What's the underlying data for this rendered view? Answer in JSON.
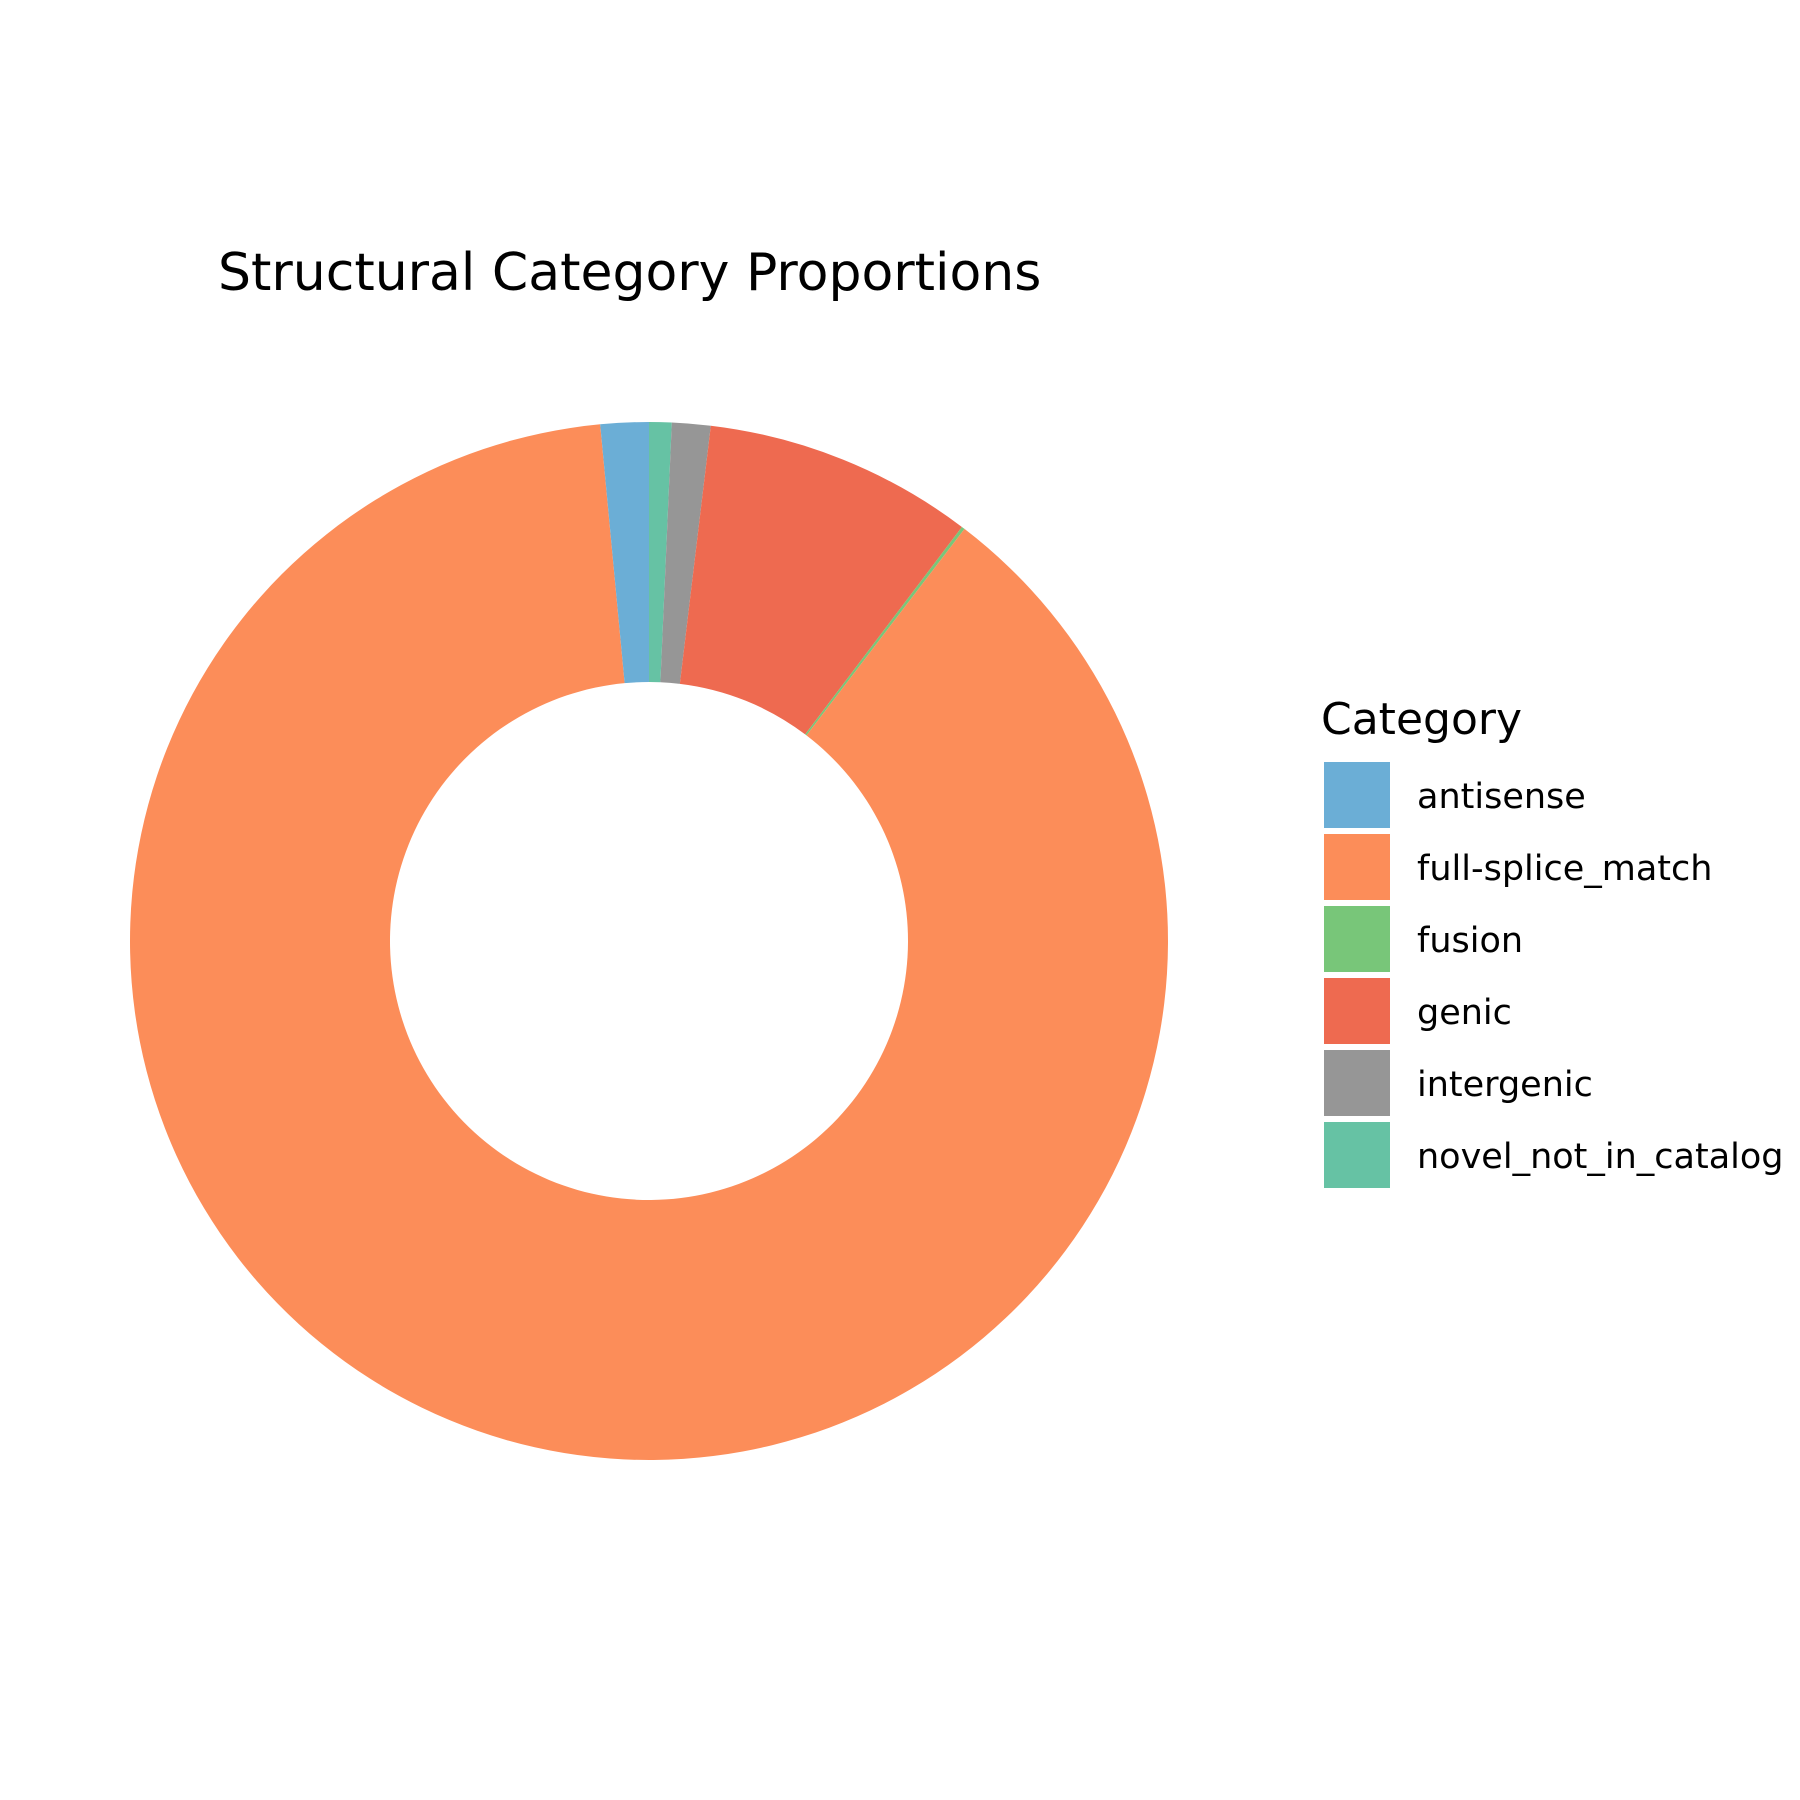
{
  "chart_data": {
    "type": "donut",
    "title": "Structural Category Proportions",
    "legend_title": "Category",
    "categories": [
      "antisense",
      "full-splice_match",
      "fusion",
      "genic",
      "intergenic",
      "novel_not_in_catalog"
    ],
    "values": [
      1.5,
      88.1,
      0.1,
      8.4,
      1.2,
      0.7
    ],
    "colors": [
      "#6baed6",
      "#fc8d59",
      "#78c679",
      "#ee6a50",
      "#969696",
      "#66c2a4"
    ],
    "legend_position": "right"
  }
}
